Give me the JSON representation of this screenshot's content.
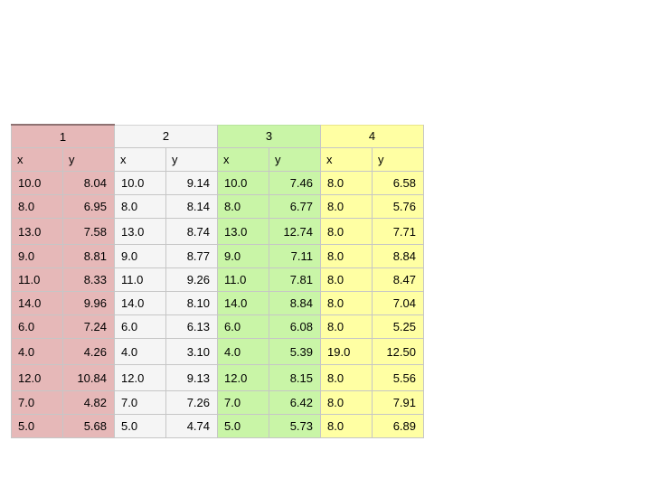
{
  "colors": {
    "set1": "#e6b8b8",
    "set2": "#f5f5f5",
    "set3": "#c9f5a7",
    "set4": "#ffffa3",
    "grid": "#c6c6c6"
  },
  "groups": [
    "1",
    "2",
    "3",
    "4"
  ],
  "subheaders": [
    "x",
    "y",
    "x",
    "y",
    "x",
    "y",
    "x",
    "y"
  ],
  "rows": [
    [
      "10.0",
      "8.04",
      "10.0",
      "9.14",
      "10.0",
      "7.46",
      "8.0",
      "6.58"
    ],
    [
      "8.0",
      "6.95",
      "8.0",
      "8.14",
      "8.0",
      "6.77",
      "8.0",
      "5.76"
    ],
    [
      "13.0",
      "7.58",
      "13.0",
      "8.74",
      "13.0",
      "12.74",
      "8.0",
      "7.71"
    ],
    [
      "9.0",
      "8.81",
      "9.0",
      "8.77",
      "9.0",
      "7.11",
      "8.0",
      "8.84"
    ],
    [
      "11.0",
      "8.33",
      "11.0",
      "9.26",
      "11.0",
      "7.81",
      "8.0",
      "8.47"
    ],
    [
      "14.0",
      "9.96",
      "14.0",
      "8.10",
      "14.0",
      "8.84",
      "8.0",
      "7.04"
    ],
    [
      "6.0",
      "7.24",
      "6.0",
      "6.13",
      "6.0",
      "6.08",
      "8.0",
      "5.25"
    ],
    [
      "4.0",
      "4.26",
      "4.0",
      "3.10",
      "4.0",
      "5.39",
      "19.0",
      "12.50"
    ],
    [
      "12.0",
      "10.84",
      "12.0",
      "9.13",
      "12.0",
      "8.15",
      "8.0",
      "5.56"
    ],
    [
      "7.0",
      "4.82",
      "7.0",
      "7.26",
      "7.0",
      "6.42",
      "8.0",
      "7.91"
    ],
    [
      "5.0",
      "5.68",
      "5.0",
      "4.74",
      "5.0",
      "5.73",
      "8.0",
      "6.89"
    ]
  ]
}
